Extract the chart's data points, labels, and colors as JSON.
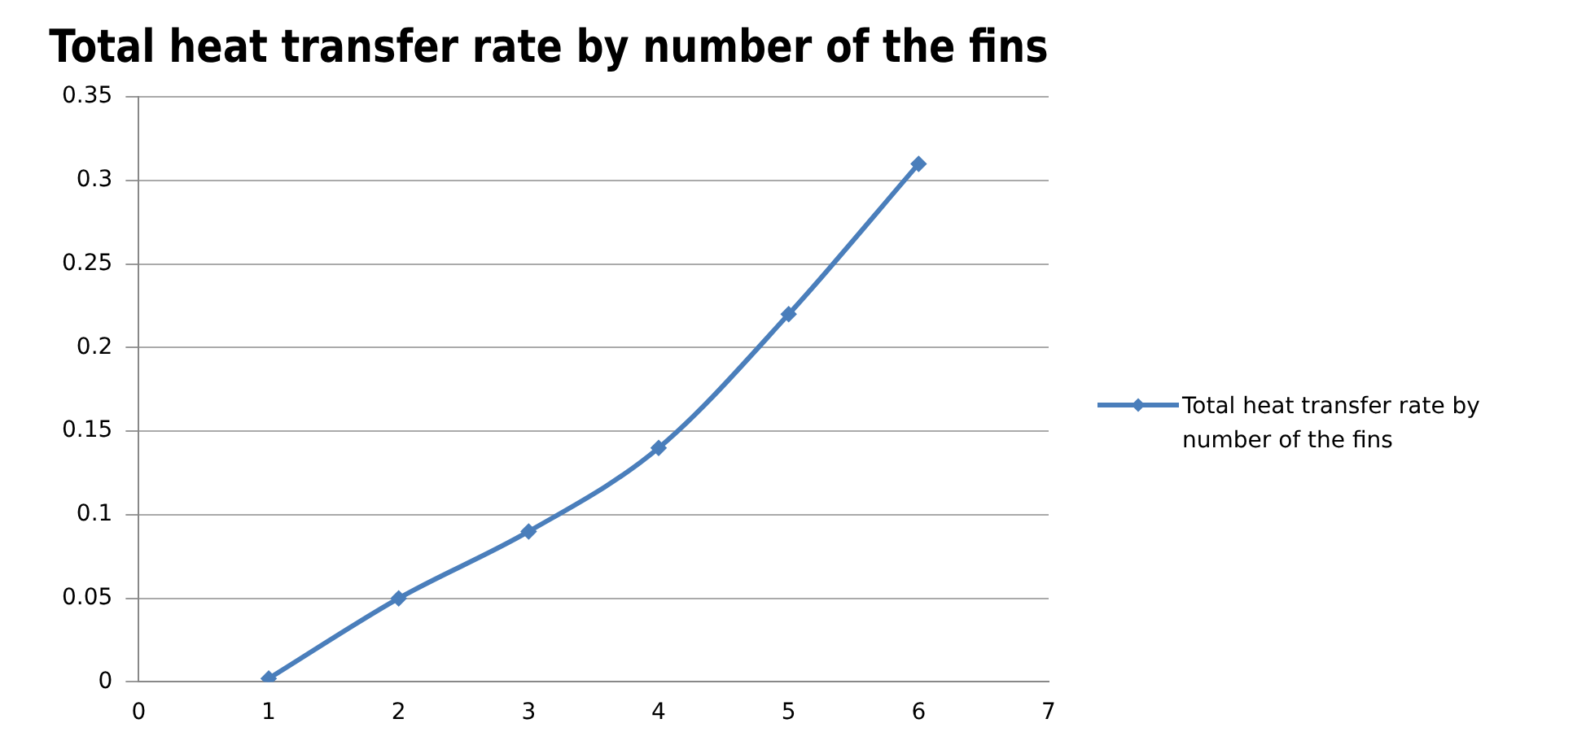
{
  "chart_data": {
    "type": "line",
    "title": "Total heat transfer rate by number of the fins",
    "x": [
      1,
      2,
      3,
      4,
      5,
      6
    ],
    "series": [
      {
        "name": "Total heat transfer rate by number of the fins",
        "color": "#4a7ebb",
        "values": [
          0.002,
          0.05,
          0.09,
          0.14,
          0.22,
          0.31
        ]
      }
    ],
    "xlim": [
      0,
      7
    ],
    "xticks": [
      0,
      1,
      2,
      3,
      4,
      5,
      6,
      7
    ],
    "ylim": [
      0,
      0.35
    ],
    "yticks": [
      0,
      0.05,
      0.1,
      0.15,
      0.2,
      0.25,
      0.3,
      0.35
    ],
    "grid": "y",
    "legend": "right",
    "marker": "diamond",
    "line_style": "solid"
  }
}
